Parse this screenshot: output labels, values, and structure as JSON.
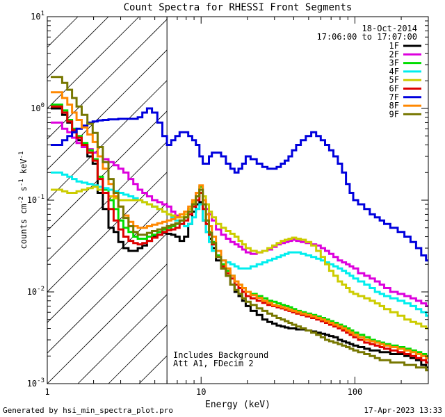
{
  "chart_data": {
    "type": "line",
    "title": "Count Spectra for RHESSI Front Segments",
    "xlabel": "Energy (keV)",
    "ylabel_parts": [
      "counts cm",
      "-2",
      " s",
      "-1",
      " keV",
      "-1"
    ],
    "xscale": "log",
    "yscale": "log",
    "xlim": [
      1,
      300
    ],
    "ylim": [
      0.001,
      10
    ],
    "x_tick_labels": [
      {
        "value": 1,
        "label": "1"
      },
      {
        "value": 10,
        "label": "10"
      },
      {
        "value": 100,
        "label": "100"
      }
    ],
    "y_tick_labels": [
      {
        "value": 0.001,
        "base": "10",
        "exp": "-3"
      },
      {
        "value": 0.01,
        "base": "10",
        "exp": "-2"
      },
      {
        "value": 0.1,
        "base": "10",
        "exp": "-1"
      },
      {
        "value": 1,
        "base": "10",
        "exp": "0"
      },
      {
        "value": 10,
        "base": "10",
        "exp": "1"
      }
    ],
    "date": "18-Oct-2014",
    "time_range": "17:06:00 to 17:07:00",
    "hatched_region": {
      "x_from": 1,
      "x_to": 6
    },
    "annotations": [
      "Includes Background",
      "Att A1, FDecim 2"
    ],
    "footer_left": "Generated by hsi_min_spectra_plot.pro",
    "footer_right": "17-Apr-2023 13:33",
    "x": [
      1.1,
      1.2,
      1.3,
      1.4,
      1.5,
      1.6,
      1.75,
      1.9,
      2.05,
      2.2,
      2.4,
      2.6,
      2.8,
      3.0,
      3.25,
      3.5,
      3.75,
      4.0,
      4.3,
      4.6,
      5.0,
      5.4,
      5.8,
      6.2,
      6.6,
      7.0,
      7.5,
      8.0,
      8.5,
      9.0,
      9.5,
      10.0,
      10.5,
      11.0,
      11.5,
      12.0,
      13.0,
      14.0,
      15.0,
      16.0,
      17.0,
      18.0,
      19.0,
      20.0,
      22.0,
      24.0,
      26.0,
      28.0,
      30.0,
      32.0,
      34.0,
      36.0,
      38.0,
      40.0,
      43.0,
      46.0,
      50.0,
      54.0,
      58.0,
      62.0,
      66.0,
      70.0,
      75.0,
      80.0,
      85.0,
      90.0,
      95.0,
      100.0,
      110.0,
      120.0,
      130.0,
      140.0,
      150.0,
      160.0,
      180.0,
      200.0,
      220.0,
      240.0,
      260.0,
      280.0,
      300.0
    ],
    "series": [
      {
        "name": "1F",
        "color": "#000000",
        "values": [
          1.0,
          1.0,
          0.85,
          0.7,
          0.55,
          0.45,
          0.38,
          0.3,
          0.25,
          0.12,
          0.08,
          0.05,
          0.045,
          0.035,
          0.03,
          0.028,
          0.028,
          0.03,
          0.032,
          0.036,
          0.04,
          0.042,
          0.044,
          0.043,
          0.042,
          0.04,
          0.036,
          0.04,
          0.055,
          0.075,
          0.09,
          0.095,
          0.06,
          0.045,
          0.038,
          0.03,
          0.022,
          0.018,
          0.015,
          0.012,
          0.01,
          0.009,
          0.008,
          0.007,
          0.0062,
          0.0056,
          0.005,
          0.0047,
          0.0045,
          0.0043,
          0.0042,
          0.0041,
          0.004,
          0.004,
          0.0039,
          0.0039,
          0.0038,
          0.0037,
          0.0036,
          0.0035,
          0.0034,
          0.0033,
          0.0032,
          0.003,
          0.0029,
          0.0028,
          0.0027,
          0.0026,
          0.0025,
          0.0024,
          0.0023,
          0.0023,
          0.0022,
          0.0022,
          0.0021,
          0.0021,
          0.002,
          0.0019,
          0.0018,
          0.0016,
          0.0015
        ]
      },
      {
        "name": "2F",
        "color": "#dd00dd",
        "values": [
          0.7,
          0.7,
          0.6,
          0.55,
          0.48,
          0.42,
          0.38,
          0.36,
          0.33,
          0.3,
          0.28,
          0.26,
          0.24,
          0.22,
          0.2,
          0.17,
          0.15,
          0.13,
          0.12,
          0.11,
          0.1,
          0.095,
          0.09,
          0.085,
          0.075,
          0.068,
          0.065,
          0.07,
          0.08,
          0.095,
          0.12,
          0.13,
          0.1,
          0.08,
          0.07,
          0.06,
          0.048,
          0.042,
          0.038,
          0.035,
          0.033,
          0.031,
          0.029,
          0.027,
          0.026,
          0.027,
          0.028,
          0.029,
          0.031,
          0.033,
          0.034,
          0.035,
          0.036,
          0.037,
          0.036,
          0.035,
          0.034,
          0.033,
          0.032,
          0.03,
          0.028,
          0.026,
          0.024,
          0.022,
          0.021,
          0.02,
          0.019,
          0.018,
          0.016,
          0.015,
          0.014,
          0.013,
          0.012,
          0.011,
          0.01,
          0.0095,
          0.009,
          0.0085,
          0.008,
          0.0075,
          0.007
        ]
      },
      {
        "name": "3F",
        "color": "#00dd00",
        "values": [
          1.1,
          1.1,
          0.95,
          0.75,
          0.6,
          0.5,
          0.42,
          0.35,
          0.28,
          0.18,
          0.13,
          0.1,
          0.08,
          0.06,
          0.05,
          0.045,
          0.04,
          0.038,
          0.038,
          0.04,
          0.042,
          0.045,
          0.048,
          0.05,
          0.052,
          0.055,
          0.06,
          0.065,
          0.075,
          0.09,
          0.11,
          0.14,
          0.09,
          0.06,
          0.045,
          0.035,
          0.025,
          0.02,
          0.017,
          0.015,
          0.013,
          0.012,
          0.011,
          0.01,
          0.0095,
          0.009,
          0.0085,
          0.008,
          0.0078,
          0.0075,
          0.0072,
          0.007,
          0.0068,
          0.0065,
          0.0062,
          0.006,
          0.0058,
          0.0056,
          0.0054,
          0.0052,
          0.005,
          0.0048,
          0.0046,
          0.0044,
          0.0042,
          0.004,
          0.0038,
          0.0036,
          0.0034,
          0.0032,
          0.003,
          0.0029,
          0.0028,
          0.0027,
          0.0026,
          0.0025,
          0.0024,
          0.0023,
          0.0022,
          0.0021,
          0.002
        ]
      },
      {
        "name": "4F",
        "color": "#00eeee",
        "values": [
          0.2,
          0.2,
          0.19,
          0.18,
          0.17,
          0.16,
          0.155,
          0.15,
          0.145,
          0.14,
          0.135,
          0.13,
          0.125,
          0.12,
          0.115,
          0.11,
          0.105,
          0.1,
          0.095,
          0.09,
          0.085,
          0.08,
          0.075,
          0.07,
          0.065,
          0.06,
          0.055,
          0.052,
          0.055,
          0.065,
          0.08,
          0.09,
          0.06,
          0.045,
          0.035,
          0.028,
          0.024,
          0.022,
          0.021,
          0.02,
          0.019,
          0.018,
          0.018,
          0.018,
          0.019,
          0.02,
          0.021,
          0.022,
          0.023,
          0.024,
          0.025,
          0.026,
          0.027,
          0.027,
          0.027,
          0.026,
          0.025,
          0.024,
          0.023,
          0.022,
          0.021,
          0.02,
          0.019,
          0.018,
          0.017,
          0.016,
          0.015,
          0.014,
          0.013,
          0.012,
          0.011,
          0.01,
          0.0095,
          0.009,
          0.0085,
          0.008,
          0.0075,
          0.007,
          0.0065,
          0.006,
          0.0055
        ]
      },
      {
        "name": "5F",
        "color": "#cccc00",
        "values": [
          0.13,
          0.13,
          0.125,
          0.12,
          0.12,
          0.125,
          0.13,
          0.135,
          0.14,
          0.13,
          0.12,
          0.11,
          0.105,
          0.1,
          0.1,
          0.1,
          0.1,
          0.1,
          0.095,
          0.09,
          0.085,
          0.08,
          0.075,
          0.07,
          0.068,
          0.065,
          0.065,
          0.07,
          0.08,
          0.095,
          0.11,
          0.13,
          0.11,
          0.09,
          0.075,
          0.065,
          0.055,
          0.05,
          0.046,
          0.043,
          0.04,
          0.036,
          0.033,
          0.03,
          0.028,
          0.027,
          0.028,
          0.03,
          0.032,
          0.034,
          0.036,
          0.037,
          0.038,
          0.039,
          0.038,
          0.037,
          0.035,
          0.032,
          0.028,
          0.024,
          0.02,
          0.017,
          0.015,
          0.013,
          0.012,
          0.011,
          0.01,
          0.0095,
          0.009,
          0.0085,
          0.008,
          0.0075,
          0.007,
          0.0065,
          0.006,
          0.0055,
          0.005,
          0.0047,
          0.0045,
          0.0042,
          0.004
        ]
      },
      {
        "name": "6F",
        "color": "#dd0000",
        "values": [
          1.05,
          1.05,
          0.9,
          0.72,
          0.58,
          0.48,
          0.4,
          0.33,
          0.27,
          0.17,
          0.12,
          0.08,
          0.06,
          0.048,
          0.04,
          0.036,
          0.034,
          0.033,
          0.034,
          0.036,
          0.039,
          0.042,
          0.045,
          0.047,
          0.048,
          0.05,
          0.055,
          0.06,
          0.07,
          0.085,
          0.1,
          0.12,
          0.08,
          0.055,
          0.042,
          0.033,
          0.024,
          0.019,
          0.016,
          0.014,
          0.012,
          0.011,
          0.01,
          0.009,
          0.0085,
          0.008,
          0.0076,
          0.0072,
          0.007,
          0.0068,
          0.0066,
          0.0064,
          0.0062,
          0.006,
          0.0058,
          0.0056,
          0.0054,
          0.0052,
          0.005,
          0.0048,
          0.0046,
          0.0044,
          0.0042,
          0.004,
          0.0038,
          0.0036,
          0.0034,
          0.0032,
          0.003,
          0.0028,
          0.0027,
          0.0026,
          0.0025,
          0.0024,
          0.0023,
          0.0022,
          0.0021,
          0.002,
          0.0019,
          0.0018,
          0.0017
        ]
      },
      {
        "name": "7F",
        "color": "#0000dd",
        "values": [
          0.4,
          0.4,
          0.45,
          0.5,
          0.55,
          0.6,
          0.65,
          0.7,
          0.72,
          0.74,
          0.75,
          0.76,
          0.76,
          0.77,
          0.77,
          0.77,
          0.77,
          0.8,
          0.9,
          1.0,
          0.9,
          0.7,
          0.5,
          0.4,
          0.45,
          0.5,
          0.55,
          0.55,
          0.5,
          0.45,
          0.4,
          0.3,
          0.25,
          0.25,
          0.3,
          0.33,
          0.33,
          0.3,
          0.25,
          0.22,
          0.2,
          0.22,
          0.25,
          0.3,
          0.28,
          0.25,
          0.23,
          0.22,
          0.22,
          0.23,
          0.25,
          0.27,
          0.3,
          0.35,
          0.4,
          0.45,
          0.5,
          0.55,
          0.5,
          0.45,
          0.4,
          0.35,
          0.3,
          0.25,
          0.2,
          0.15,
          0.12,
          0.1,
          0.09,
          0.08,
          0.07,
          0.065,
          0.06,
          0.055,
          0.05,
          0.045,
          0.04,
          0.035,
          0.03,
          0.025,
          0.022
        ]
      },
      {
        "name": "8F",
        "color": "#ff8800",
        "values": [
          1.5,
          1.5,
          1.3,
          1.1,
          0.9,
          0.75,
          0.62,
          0.52,
          0.43,
          0.3,
          0.22,
          0.15,
          0.11,
          0.085,
          0.068,
          0.058,
          0.052,
          0.05,
          0.05,
          0.052,
          0.054,
          0.056,
          0.058,
          0.06,
          0.062,
          0.065,
          0.07,
          0.075,
          0.085,
          0.1,
          0.12,
          0.145,
          0.1,
          0.07,
          0.052,
          0.04,
          0.028,
          0.022,
          0.018,
          0.015,
          0.013,
          0.012,
          0.011,
          0.01,
          0.0092,
          0.0086,
          0.008,
          0.0076,
          0.0072,
          0.007,
          0.0068,
          0.0066,
          0.0064,
          0.0062,
          0.006,
          0.0058,
          0.0056,
          0.0054,
          0.0052,
          0.005,
          0.0048,
          0.0046,
          0.0044,
          0.0042,
          0.004,
          0.0038,
          0.0036,
          0.0034,
          0.0032,
          0.003,
          0.0029,
          0.0028,
          0.0027,
          0.0026,
          0.0025,
          0.0024,
          0.0023,
          0.0022,
          0.0021,
          0.002,
          0.0019
        ]
      },
      {
        "name": "9F",
        "color": "#777700",
        "values": [
          2.2,
          2.2,
          1.9,
          1.6,
          1.3,
          1.05,
          0.85,
          0.68,
          0.54,
          0.38,
          0.26,
          0.17,
          0.12,
          0.085,
          0.064,
          0.052,
          0.045,
          0.042,
          0.042,
          0.044,
          0.046,
          0.048,
          0.05,
          0.052,
          0.054,
          0.056,
          0.06,
          0.065,
          0.075,
          0.09,
          0.11,
          0.13,
          0.09,
          0.06,
          0.044,
          0.034,
          0.024,
          0.018,
          0.015,
          0.012,
          0.0105,
          0.0095,
          0.0085,
          0.0078,
          0.0072,
          0.0066,
          0.0062,
          0.0058,
          0.0055,
          0.0052,
          0.005,
          0.0048,
          0.0046,
          0.0044,
          0.0042,
          0.004,
          0.0038,
          0.0036,
          0.0034,
          0.0032,
          0.003,
          0.0029,
          0.0028,
          0.0027,
          0.0026,
          0.0025,
          0.0024,
          0.0023,
          0.0022,
          0.0021,
          0.002,
          0.0019,
          0.0018,
          0.0018,
          0.0017,
          0.0017,
          0.0016,
          0.0016,
          0.0015,
          0.0015,
          0.0014
        ]
      }
    ]
  }
}
